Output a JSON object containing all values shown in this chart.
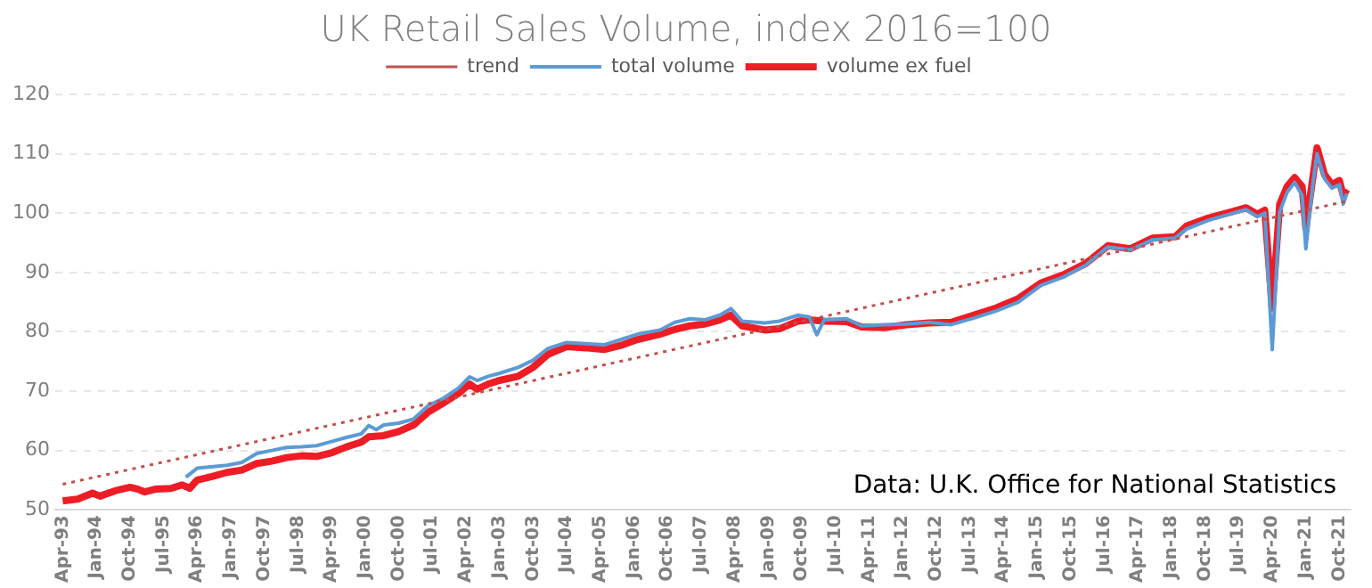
{
  "chart_data": {
    "type": "line",
    "title": "UK Retail Sales Volume, index 2016=100",
    "marker": "none",
    "grid": "y",
    "legend": "top",
    "xlim": [
      "1993-02",
      "2022-01"
    ],
    "ylim": [
      50,
      120
    ],
    "yticks": [
      50,
      60,
      70,
      80,
      90,
      100,
      110,
      120
    ],
    "xticks": [
      {
        "value": "1993-04",
        "label": "Apr-93"
      },
      {
        "value": "1994-01",
        "label": "Jan-94"
      },
      {
        "value": "1994-10",
        "label": "Oct-94"
      },
      {
        "value": "1995-07",
        "label": "Jul-95"
      },
      {
        "value": "1996-04",
        "label": "Apr-96"
      },
      {
        "value": "1997-01",
        "label": "Jan-97"
      },
      {
        "value": "1997-10",
        "label": "Oct-97"
      },
      {
        "value": "1998-07",
        "label": "Jul-98"
      },
      {
        "value": "1999-04",
        "label": "Apr-99"
      },
      {
        "value": "2000-01",
        "label": "Jan-00"
      },
      {
        "value": "2000-10",
        "label": "Oct-00"
      },
      {
        "value": "2001-07",
        "label": "Jul-01"
      },
      {
        "value": "2002-04",
        "label": "Apr-02"
      },
      {
        "value": "2003-01",
        "label": "Jan-03"
      },
      {
        "value": "2003-10",
        "label": "Oct-03"
      },
      {
        "value": "2004-07",
        "label": "Jul-04"
      },
      {
        "value": "2005-04",
        "label": "Apr-05"
      },
      {
        "value": "2006-01",
        "label": "Jan-06"
      },
      {
        "value": "2006-10",
        "label": "Oct-06"
      },
      {
        "value": "2007-07",
        "label": "Jul-07"
      },
      {
        "value": "2008-04",
        "label": "Apr-08"
      },
      {
        "value": "2009-01",
        "label": "Jan-09"
      },
      {
        "value": "2009-10",
        "label": "Oct-09"
      },
      {
        "value": "2010-07",
        "label": "Jul-10"
      },
      {
        "value": "2011-04",
        "label": "Apr-11"
      },
      {
        "value": "2012-01",
        "label": "Jan-12"
      },
      {
        "value": "2012-10",
        "label": "Oct-12"
      },
      {
        "value": "2013-07",
        "label": "Jul-13"
      },
      {
        "value": "2014-04",
        "label": "Apr-14"
      },
      {
        "value": "2015-01",
        "label": "Jan-15"
      },
      {
        "value": "2015-10",
        "label": "Oct-15"
      },
      {
        "value": "2016-07",
        "label": "Jul-16"
      },
      {
        "value": "2017-04",
        "label": "Apr-17"
      },
      {
        "value": "2018-01",
        "label": "Jan-18"
      },
      {
        "value": "2018-10",
        "label": "Oct-18"
      },
      {
        "value": "2019-07",
        "label": "Jul-19"
      },
      {
        "value": "2020-04",
        "label": "Apr-20"
      },
      {
        "value": "2021-01",
        "label": "Jan-21"
      },
      {
        "value": "2021-10",
        "label": "Oct-21"
      }
    ],
    "annotations": [
      "Data: U.K. Office for National Statistics"
    ],
    "series": [
      {
        "name": "volume ex fuel",
        "color": "#ee1c25",
        "x": [
          "1993-04",
          "1993-08",
          "1993-12",
          "1994-02",
          "1994-06",
          "1994-10",
          "1994-12",
          "1995-02",
          "1995-05",
          "1995-09",
          "1995-12",
          "1996-02",
          "1996-04",
          "1996-08",
          "1996-12",
          "1997-04",
          "1997-08",
          "1997-12",
          "1998-04",
          "1998-08",
          "1998-12",
          "1999-04",
          "1999-08",
          "1999-12",
          "2000-02",
          "2000-06",
          "2000-10",
          "2001-02",
          "2001-06",
          "2001-10",
          "2002-02",
          "2002-05",
          "2002-07",
          "2002-10",
          "2003-01",
          "2003-06",
          "2003-10",
          "2004-02",
          "2004-07",
          "2004-12",
          "2005-05",
          "2005-10",
          "2006-02",
          "2006-08",
          "2006-12",
          "2007-04",
          "2007-08",
          "2007-12",
          "2008-03",
          "2008-06",
          "2008-12",
          "2009-04",
          "2009-09",
          "2009-12",
          "2010-04",
          "2010-10",
          "2011-02",
          "2011-08",
          "2012-02",
          "2012-08",
          "2013-02",
          "2013-08",
          "2014-02",
          "2014-08",
          "2015-02",
          "2015-08",
          "2016-02",
          "2016-08",
          "2017-02",
          "2017-08",
          "2018-02",
          "2018-05",
          "2018-11",
          "2019-05",
          "2019-09",
          "2019-12",
          "2020-02",
          "2020-04",
          "2020-06",
          "2020-08",
          "2020-10",
          "2020-12",
          "2021-01",
          "2021-03",
          "2021-04",
          "2021-06",
          "2021-08",
          "2021-10",
          "2021-11",
          "2021-12"
        ],
        "values": [
          51.5,
          51.8,
          52.8,
          52.3,
          53.2,
          53.8,
          53.5,
          53.0,
          53.5,
          53.6,
          54.2,
          53.6,
          55.0,
          55.6,
          56.3,
          56.7,
          57.8,
          58.2,
          58.8,
          59.1,
          59.0,
          59.6,
          60.6,
          61.4,
          62.3,
          62.5,
          63.2,
          64.3,
          66.5,
          68.0,
          69.6,
          71.2,
          70.3,
          71.2,
          71.8,
          72.5,
          74.0,
          76.2,
          77.5,
          77.3,
          77.0,
          77.8,
          78.7,
          79.6,
          80.4,
          81.0,
          81.3,
          82.0,
          82.8,
          81.0,
          80.3,
          80.5,
          81.8,
          82.0,
          81.8,
          81.7,
          80.8,
          80.7,
          81.2,
          81.5,
          81.6,
          82.8,
          84.0,
          85.6,
          88.2,
          89.6,
          91.5,
          94.5,
          94.0,
          95.8,
          96.0,
          97.8,
          99.2,
          100.2,
          100.9,
          99.8,
          100.5,
          84.0,
          101.5,
          104.5,
          106.0,
          104.5,
          97.5,
          106.5,
          111.0,
          106.5,
          104.8,
          105.5,
          103.0,
          104.0
        ]
      },
      {
        "name": "total volume",
        "color": "#5b9bd5",
        "x": [
          "1996-01",
          "1996-04",
          "1996-12",
          "1997-04",
          "1997-08",
          "1997-12",
          "1998-04",
          "1998-08",
          "1998-12",
          "1999-04",
          "1999-08",
          "1999-12",
          "2000-02",
          "2000-04",
          "2000-06",
          "2000-10",
          "2001-02",
          "2001-06",
          "2001-10",
          "2002-02",
          "2002-05",
          "2002-07",
          "2002-10",
          "2003-01",
          "2003-06",
          "2003-10",
          "2004-02",
          "2004-07",
          "2004-12",
          "2005-05",
          "2005-10",
          "2006-02",
          "2006-08",
          "2006-12",
          "2007-04",
          "2007-08",
          "2007-12",
          "2008-03",
          "2008-06",
          "2008-12",
          "2009-04",
          "2009-09",
          "2009-12",
          "2010-02",
          "2010-04",
          "2010-10",
          "2011-02",
          "2011-08",
          "2012-02",
          "2012-08",
          "2013-02",
          "2013-08",
          "2014-02",
          "2014-08",
          "2015-02",
          "2015-08",
          "2016-02",
          "2016-08",
          "2017-02",
          "2017-08",
          "2018-02",
          "2018-05",
          "2018-11",
          "2019-05",
          "2019-09",
          "2019-12",
          "2020-02",
          "2020-04",
          "2020-06",
          "2020-08",
          "2020-10",
          "2020-12",
          "2021-01",
          "2021-03",
          "2021-04",
          "2021-06",
          "2021-08",
          "2021-10",
          "2021-11",
          "2021-12"
        ],
        "values": [
          55.5,
          57.0,
          57.5,
          58.0,
          59.5,
          60.0,
          60.5,
          60.6,
          60.8,
          61.5,
          62.2,
          62.8,
          64.2,
          63.5,
          64.3,
          64.6,
          65.3,
          67.6,
          68.8,
          70.5,
          72.4,
          71.8,
          72.5,
          73.0,
          74.0,
          75.2,
          77.2,
          78.2,
          78.0,
          77.8,
          78.8,
          79.6,
          80.3,
          81.6,
          82.2,
          82.0,
          82.8,
          83.9,
          81.8,
          81.5,
          81.8,
          82.8,
          82.5,
          79.5,
          82.0,
          82.2,
          81.0,
          81.2,
          81.3,
          81.6,
          81.2,
          82.3,
          83.5,
          85.0,
          87.8,
          89.2,
          91.2,
          94.3,
          93.8,
          95.5,
          95.8,
          97.3,
          98.8,
          99.9,
          100.6,
          99.4,
          100.0,
          77.0,
          100.2,
          103.5,
          105.2,
          103.0,
          94.0,
          105.5,
          110.0,
          105.8,
          104.2,
          104.8,
          101.5,
          103.3
        ]
      },
      {
        "name": "trend",
        "color": "#c0504d",
        "line_style": "dotted",
        "x": [
          "1993-04",
          "2021-12"
        ],
        "values": [
          54.3,
          102.0
        ]
      }
    ]
  }
}
